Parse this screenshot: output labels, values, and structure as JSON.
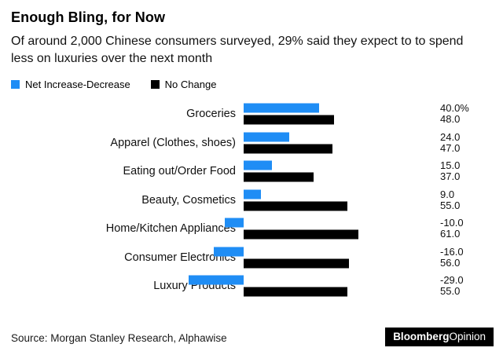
{
  "header": {
    "title": "Enough Bling, for Now",
    "subtitle": "Of around 2,000 Chinese consumers surveyed, 29% said they expect to to spend less on luxuries over the next month"
  },
  "legend": {
    "items": [
      {
        "label": "Net Increase-Decrease",
        "color": "#1f8df5"
      },
      {
        "label": "No Change",
        "color": "#000000"
      }
    ]
  },
  "chart_data": {
    "type": "bar",
    "orientation": "horizontal",
    "title": "Enough Bling, for Now",
    "subtitle": "Of around 2,000 Chinese consumers surveyed, 29% said they expect to to spend less on luxuries over the next month",
    "categories": [
      "Groceries",
      "Apparel (Clothes, shoes)",
      "Eating out/Order Food",
      "Beauty, Cosmetics",
      "Home/Kitchen Appliances",
      "Consumer Electronics",
      "Luxury Products"
    ],
    "series": [
      {
        "name": "Net Increase-Decrease",
        "color": "#1f8df5",
        "values": [
          40.0,
          24.0,
          15.0,
          9.0,
          -10.0,
          -16.0,
          -29.0
        ]
      },
      {
        "name": "No Change",
        "color": "#000000",
        "values": [
          48.0,
          47.0,
          37.0,
          55.0,
          61.0,
          56.0,
          55.0
        ]
      }
    ],
    "value_labels": [
      [
        "40.0%",
        "48.0"
      ],
      [
        "24.0",
        "47.0"
      ],
      [
        "15.0",
        "37.0"
      ],
      [
        "9.0",
        "55.0"
      ],
      [
        "-10.0",
        "61.0"
      ],
      [
        "-16.0",
        "56.0"
      ],
      [
        "-29.0",
        "55.0"
      ]
    ],
    "xlim": [
      -35,
      65
    ],
    "grid": false,
    "legend_position": "top-left"
  },
  "footer": {
    "source": "Source: Morgan Stanley Research, Alphawise",
    "brand_bold": "Bloomberg",
    "brand_light": "Opinion"
  }
}
